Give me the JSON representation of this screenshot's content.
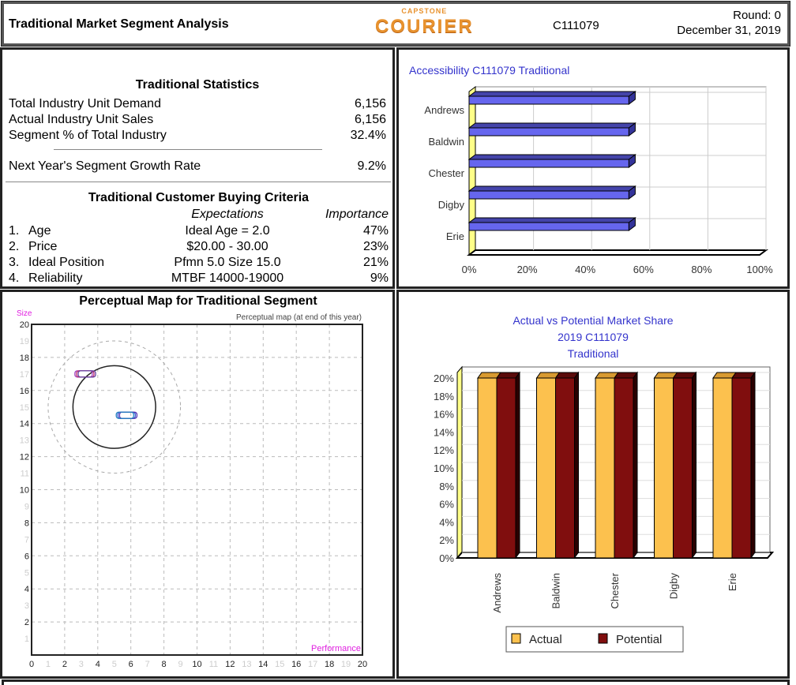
{
  "header": {
    "title": "Traditional Market Segment Analysis",
    "logo_top": "CAPSTONE",
    "logo_main": "COURIER",
    "company_id": "C111079",
    "round": "Round: 0",
    "date": "December 31, 2019"
  },
  "statistics": {
    "title": "Traditional Statistics",
    "rows": [
      {
        "label": "Total Industry Unit Demand",
        "value": "6,156"
      },
      {
        "label": "Actual Industry Unit Sales",
        "value": "6,156"
      },
      {
        "label": "Segment % of Total Industry",
        "value": "32.4%"
      }
    ],
    "growth": {
      "label": "Next Year's Segment Growth Rate",
      "value": "9.2%"
    }
  },
  "criteria": {
    "title": "Traditional Customer Buying Criteria",
    "col_expectations": "Expectations",
    "col_importance": "Importance",
    "rows": [
      {
        "num": "1.",
        "name": "Age",
        "expectation": "Ideal Age = 2.0",
        "importance": "47%"
      },
      {
        "num": "2.",
        "name": "Price",
        "expectation": "$20.00 - 30.00",
        "importance": "23%"
      },
      {
        "num": "3.",
        "name": "Ideal Position",
        "expectation": "Pfmn 5.0 Size 15.0",
        "importance": "21%"
      },
      {
        "num": "4.",
        "name": "Reliability",
        "expectation": "MTBF 14000-19000",
        "importance": "9%"
      }
    ]
  },
  "perceptual_map": {
    "title": "Perceptual Map for Traditional Segment",
    "subtitle": "Perceptual map (at end of this year)",
    "ylabel": "Size",
    "xlabel": "Performance",
    "ticks": [
      "0",
      "1",
      "2",
      "3",
      "4",
      "5",
      "6",
      "7",
      "8",
      "9",
      "10",
      "11",
      "12",
      "13",
      "14",
      "15",
      "16",
      "17",
      "18",
      "19",
      "20"
    ],
    "fine_cut": {
      "center": [
        5,
        15
      ],
      "radius": 2.5
    },
    "rough_cut": {
      "center": [
        5,
        15
      ],
      "radius": 4
    },
    "points": [
      {
        "x": 3,
        "y": 17,
        "color": "#a040c0"
      },
      {
        "x": 3.1,
        "y": 17,
        "color": "#c03070"
      },
      {
        "x": 3.2,
        "y": 17,
        "color": "#6040a0"
      },
      {
        "x": 5.6,
        "y": 14.5,
        "color": "#3050d0"
      },
      {
        "x": 5.7,
        "y": 14.5,
        "color": "#5030b0"
      },
      {
        "x": 5.5,
        "y": 14.5,
        "color": "#2080c0"
      }
    ]
  },
  "chart_data": [
    {
      "type": "bar",
      "orientation": "horizontal",
      "title": "Accessibility C111079 Traditional",
      "categories": [
        "Andrews",
        "Baldwin",
        "Chester",
        "Digby",
        "Erie"
      ],
      "values": [
        55,
        55,
        55,
        55,
        55
      ],
      "xlim": [
        0,
        100
      ],
      "ticks": [
        "0%",
        "20%",
        "40%",
        "60%",
        "80%",
        "100%"
      ],
      "color": "#6666ee",
      "grid": true
    },
    {
      "type": "bar",
      "title": [
        "Actual vs Potential Market Share",
        "2019 C111079",
        "Traditional"
      ],
      "categories": [
        "Andrews",
        "Baldwin",
        "Chester",
        "Digby",
        "Erie"
      ],
      "series": [
        {
          "name": "Actual",
          "values": [
            20,
            20,
            20,
            20,
            20
          ],
          "color": "#fcc14e"
        },
        {
          "name": "Potential",
          "values": [
            20,
            20,
            20,
            20,
            20
          ],
          "color": "#800e0e"
        }
      ],
      "ylim": [
        0,
        20
      ],
      "ticks": [
        "0%",
        "2%",
        "4%",
        "6%",
        "8%",
        "10%",
        "12%",
        "14%",
        "16%",
        "18%",
        "20%"
      ],
      "legend": "bottom",
      "grid": true
    }
  ]
}
